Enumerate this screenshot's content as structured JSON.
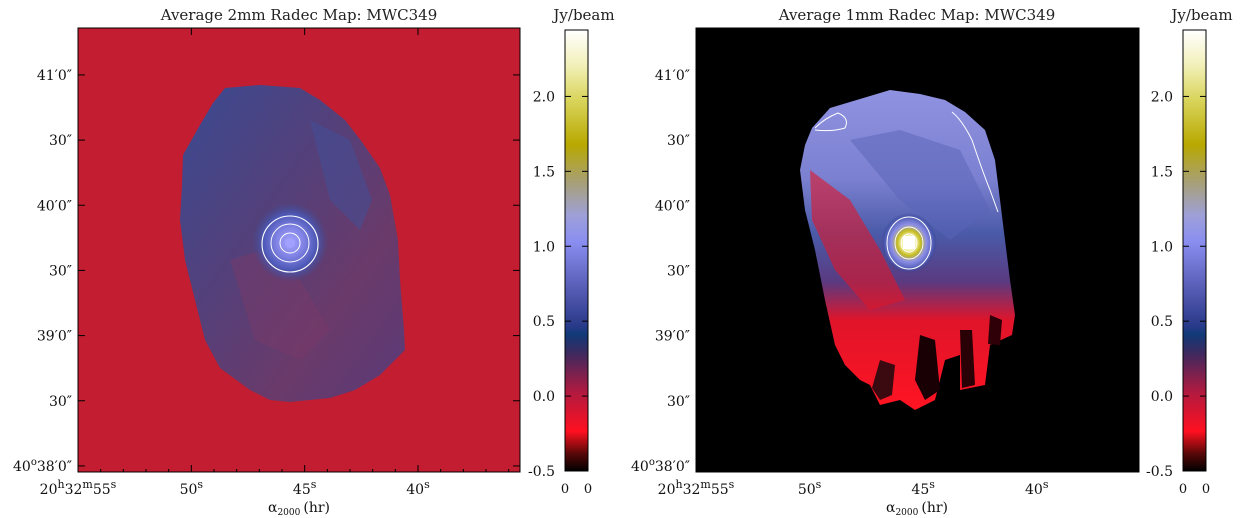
{
  "chart_data": [
    {
      "type": "heatmap",
      "title": "Average 2mm Radec Map: MWC349",
      "xlabel": "α",
      "xlabel_sub": "2000",
      "xlabel_unit": "(hr)",
      "colorbar_label": "Jy/beam",
      "colorbar_ticks": [
        "2.0",
        "1.5",
        "1.0",
        "0.5",
        "0.0",
        "-0.5"
      ],
      "colorbar_tick_values": [
        2.0,
        1.5,
        1.0,
        0.5,
        0.0,
        -0.5
      ],
      "colorbar_range": [
        -0.5,
        2.45
      ],
      "colorbar_footer": [
        "0",
        "0"
      ],
      "x_ticks": [
        {
          "main": "20",
          "sup1": "h",
          "mid": "32",
          "sup2": "m",
          "end": "55",
          "sup3": "s",
          "value_s": 55
        },
        {
          "main": "50",
          "sup3": "s",
          "value_s": 50
        },
        {
          "main": "45",
          "sup3": "s",
          "value_s": 45
        },
        {
          "main": "40",
          "sup3": "s",
          "value_s": 40
        }
      ],
      "y_ticks": [
        {
          "text": "41′0″",
          "value_arcsec": 60
        },
        {
          "text": "30″",
          "value_arcsec": 30
        },
        {
          "text": "40′0″",
          "value_arcsec": 0
        },
        {
          "text": "30″",
          "value_arcsec": -30
        },
        {
          "text": "39′0″",
          "value_arcsec": -60
        },
        {
          "text": "30″",
          "value_arcsec": -90
        },
        {
          "text": "40",
          "sup": "o",
          "rest": "38′0″",
          "value_arcsec": -120
        }
      ],
      "background_color": "#c0202f",
      "source": {
        "ra_s": 45.2,
        "dec_arcsec": -18,
        "peak_jy": 1.0
      },
      "contour_levels_jy": [
        0.4,
        0.6,
        0.8
      ]
    },
    {
      "type": "heatmap",
      "title": "Average 1mm Radec Map: MWC349",
      "xlabel": "α",
      "xlabel_sub": "2000",
      "xlabel_unit": "(hr)",
      "colorbar_label": "Jy/beam",
      "colorbar_ticks": [
        "2.0",
        "1.5",
        "1.0",
        "0.5",
        "0.0",
        "-0.5"
      ],
      "colorbar_tick_values": [
        2.0,
        1.5,
        1.0,
        0.5,
        0.0,
        -0.5
      ],
      "colorbar_range": [
        -0.5,
        2.45
      ],
      "colorbar_footer": [
        "0",
        "0"
      ],
      "x_ticks": [
        {
          "main": "20",
          "sup1": "h",
          "mid": "32",
          "sup2": "m",
          "end": "55",
          "sup3": "s",
          "value_s": 55
        },
        {
          "main": "50",
          "sup3": "s",
          "value_s": 50
        },
        {
          "main": "45",
          "sup3": "s",
          "value_s": 45
        },
        {
          "main": "40",
          "sup3": "s",
          "value_s": 40
        }
      ],
      "y_ticks": [
        {
          "text": "41′0″",
          "value_arcsec": 60
        },
        {
          "text": "30″",
          "value_arcsec": 30
        },
        {
          "text": "40′0″",
          "value_arcsec": 0
        },
        {
          "text": "30″",
          "value_arcsec": -30
        },
        {
          "text": "39′0″",
          "value_arcsec": -60
        },
        {
          "text": "30″",
          "value_arcsec": -90
        },
        {
          "text": "40",
          "sup": "o",
          "rest": "38′0″",
          "value_arcsec": -120
        }
      ],
      "background_color": "#000000",
      "source": {
        "ra_s": 44.6,
        "dec_arcsec": -18,
        "peak_jy": 2.4
      },
      "contour_levels_jy": [
        0.6,
        1.0,
        1.6
      ]
    }
  ]
}
